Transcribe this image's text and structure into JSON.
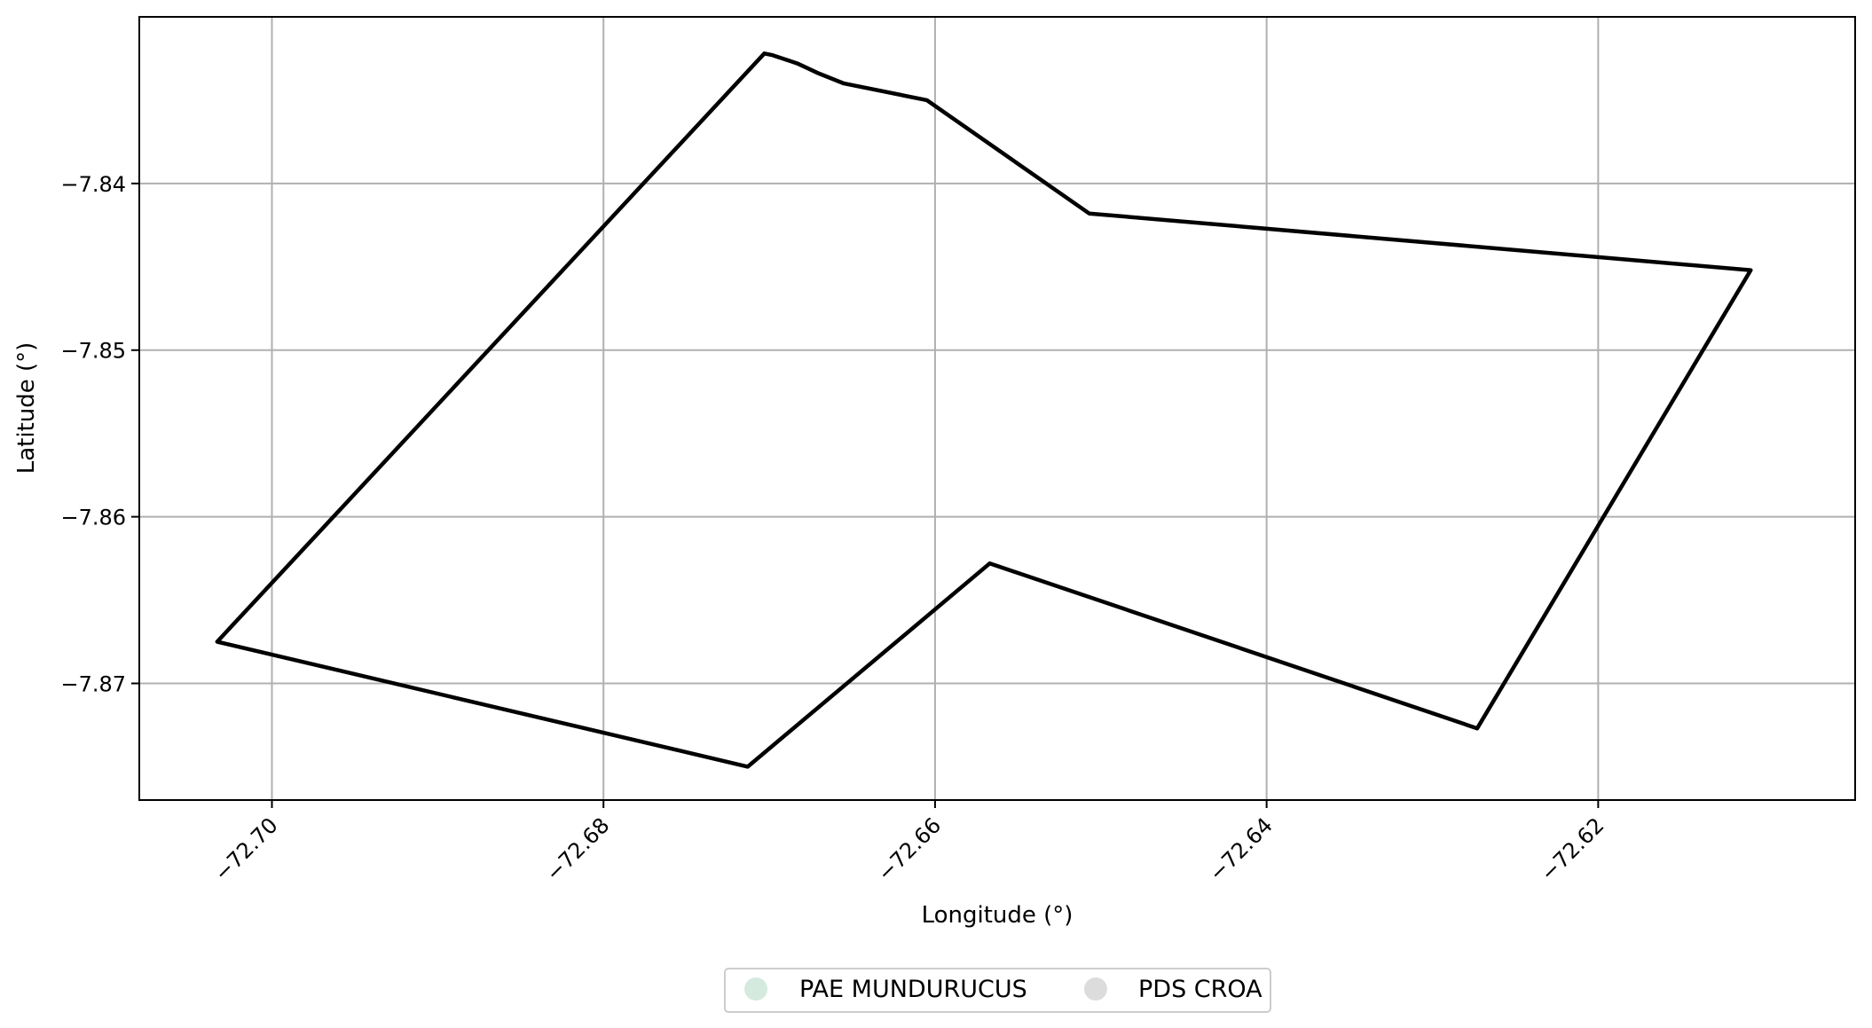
{
  "chart_data": {
    "type": "map",
    "xlabel": "Longitude (°)",
    "ylabel": "Latitude (°)",
    "xlim": [
      -72.708,
      -72.6045
    ],
    "ylim": [
      -7.877,
      -7.83
    ],
    "grid": true,
    "x_ticks": [
      -72.7,
      -72.68,
      -72.66,
      -72.64,
      -72.62
    ],
    "x_tick_labels": [
      "−72.70",
      "−72.68",
      "−72.66",
      "−72.64",
      "−72.62"
    ],
    "y_ticks": [
      -7.84,
      -7.85,
      -7.86,
      -7.87
    ],
    "y_tick_labels": [
      "−7.84",
      "−7.85",
      "−7.86",
      "−7.87"
    ],
    "outline_color": "#000000",
    "polygon": [
      [
        -72.6703,
        -7.8322
      ],
      [
        -72.6698,
        -7.8323
      ],
      [
        -72.6683,
        -7.8328
      ],
      [
        -72.667,
        -7.8334
      ],
      [
        -72.6655,
        -7.834
      ],
      [
        -72.6605,
        -7.835
      ],
      [
        -72.6507,
        -7.8418
      ],
      [
        -72.6108,
        -7.8452
      ],
      [
        -72.6273,
        -7.8727
      ],
      [
        -72.6567,
        -7.8628
      ],
      [
        -72.6713,
        -7.875
      ],
      [
        -72.7033,
        -7.8675
      ],
      [
        -72.6703,
        -7.8322
      ]
    ],
    "legend": {
      "placement": "bottom-center",
      "entries": [
        {
          "label": "PAE MUNDURUCUS",
          "color": "#d4eade"
        },
        {
          "label": "PDS CROA",
          "color": "#dcdcdc"
        }
      ]
    }
  }
}
